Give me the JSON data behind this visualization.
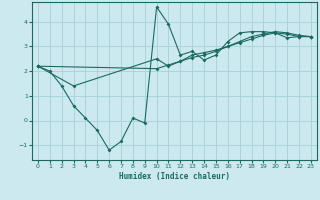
{
  "xlabel": "Humidex (Indice chaleur)",
  "background_color": "#cce9f0",
  "grid_color": "#aad4dc",
  "line_color": "#1a6b5e",
  "xlim": [
    -0.5,
    23.5
  ],
  "ylim": [
    -1.6,
    4.8
  ],
  "yticks": [
    -1,
    0,
    1,
    2,
    3,
    4
  ],
  "xticks": [
    0,
    1,
    2,
    3,
    4,
    5,
    6,
    7,
    8,
    9,
    10,
    11,
    12,
    13,
    14,
    15,
    16,
    17,
    18,
    19,
    20,
    21,
    22,
    23
  ],
  "line1_x": [
    0,
    1,
    2,
    3,
    4,
    5,
    6,
    7,
    8,
    9,
    10,
    11,
    12,
    13,
    14,
    15,
    16,
    17,
    18,
    19,
    20,
    21,
    22,
    23
  ],
  "line1_y": [
    2.2,
    2.0,
    1.4,
    0.6,
    0.1,
    -0.4,
    -1.2,
    -0.85,
    0.1,
    -0.1,
    4.6,
    3.9,
    2.65,
    2.8,
    2.45,
    2.65,
    3.2,
    3.55,
    3.6,
    3.6,
    3.55,
    3.35,
    3.4,
    3.4
  ],
  "line2_x": [
    0,
    3,
    10,
    11,
    12,
    13,
    14,
    15,
    16,
    17,
    18,
    19,
    20,
    21,
    22,
    23
  ],
  "line2_y": [
    2.2,
    1.4,
    2.5,
    2.2,
    2.4,
    2.65,
    2.75,
    2.85,
    3.0,
    3.15,
    3.3,
    3.45,
    3.55,
    3.5,
    3.4,
    3.4
  ],
  "line3_x": [
    0,
    10,
    11,
    12,
    13,
    14,
    15,
    16,
    17,
    18,
    19,
    20,
    21,
    22,
    23
  ],
  "line3_y": [
    2.2,
    2.1,
    2.25,
    2.4,
    2.55,
    2.65,
    2.8,
    3.0,
    3.2,
    3.4,
    3.5,
    3.6,
    3.55,
    3.45,
    3.4
  ]
}
